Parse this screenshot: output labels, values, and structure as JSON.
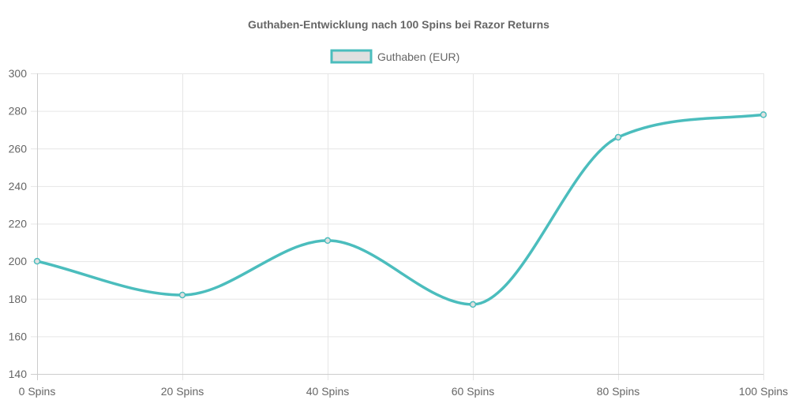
{
  "chart_data": {
    "type": "line",
    "title": "Guthaben-Entwicklung nach 100 Spins bei Razor Returns",
    "categories": [
      "0 Spins",
      "20 Spins",
      "40 Spins",
      "60 Spins",
      "80 Spins",
      "100 Spins"
    ],
    "series": [
      {
        "name": "Guthaben (EUR)",
        "values": [
          200,
          182,
          211,
          177,
          266,
          278
        ],
        "color": "#4bbdbd",
        "fill": "#e0e0e0"
      }
    ],
    "yticks": [
      140,
      160,
      180,
      200,
      220,
      240,
      260,
      280,
      300
    ],
    "ylim": [
      140,
      300
    ],
    "xlabel": "",
    "ylabel": "",
    "grid": true,
    "legend_position": "top-center"
  }
}
